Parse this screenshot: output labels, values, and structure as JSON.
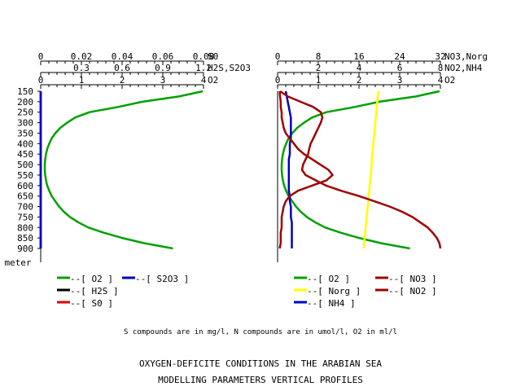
{
  "captions": {
    "note": "S compounds are in mg/l, N compounds are in umol/l, O2 in ml/l",
    "title_line1": "OXYGEN-DEFICITE CONDITIONS IN THE ARABIAN SEA",
    "title_line2": "MODELLING PARAMETERS VERTICAL PROFILES"
  },
  "depth_axis": {
    "unit_label": "meter",
    "range": [
      150,
      900
    ],
    "ticks": [
      "150",
      "200",
      "250",
      "300",
      "350",
      "400",
      "450",
      "500",
      "550",
      "600",
      "650",
      "700",
      "750",
      "800",
      "850",
      "900"
    ]
  },
  "chart_data": [
    {
      "type": "line",
      "panel": "left",
      "y_axis": "depth (m), inverted",
      "axes": [
        {
          "label": "S0",
          "range": [
            0,
            0.08
          ],
          "ticks": [
            "0",
            "0.02",
            "0.04",
            "0.06",
            "0.08"
          ]
        },
        {
          "label": "H2S,S2O3",
          "range": [
            0,
            1.2
          ],
          "ticks": [
            "0.3",
            "0.6",
            "0.9",
            "1.2"
          ]
        },
        {
          "label": "O2",
          "range": [
            0,
            4
          ],
          "ticks": [
            "0",
            "1",
            "2",
            "3",
            "4"
          ]
        }
      ],
      "depth": [
        150,
        175,
        200,
        225,
        250,
        275,
        300,
        325,
        350,
        375,
        400,
        425,
        450,
        475,
        500,
        525,
        550,
        575,
        600,
        625,
        650,
        675,
        700,
        725,
        750,
        775,
        800,
        825,
        850,
        875,
        900
      ],
      "series": [
        {
          "legend": "--[ O2 ]",
          "axis": "O2",
          "color": "#00a000",
          "values": [
            3.98,
            3.4,
            2.5,
            1.9,
            1.2,
            0.85,
            0.65,
            0.48,
            0.36,
            0.27,
            0.21,
            0.16,
            0.13,
            0.11,
            0.1,
            0.1,
            0.11,
            0.13,
            0.16,
            0.21,
            0.27,
            0.36,
            0.45,
            0.57,
            0.72,
            0.92,
            1.17,
            1.55,
            2.0,
            2.55,
            3.25
          ]
        },
        {
          "legend": "--[ H2S ]",
          "axis": "H2S,S2O3",
          "color": "#000000",
          "values": [
            0,
            0,
            0,
            0,
            0,
            0,
            0,
            0,
            0,
            0,
            0,
            0,
            0,
            0,
            0,
            0,
            0,
            0,
            0,
            0,
            0,
            0,
            0,
            0,
            0,
            0,
            0,
            0,
            0,
            0,
            0
          ]
        },
        {
          "legend": "--[ S0 ]",
          "axis": "S0",
          "color": "#e00000",
          "values": [
            0,
            0,
            0,
            0,
            0,
            0,
            0,
            0,
            0,
            0,
            0,
            0,
            0,
            0,
            0,
            0,
            0,
            0,
            0,
            0,
            0,
            0,
            0,
            0,
            0,
            0,
            0,
            0,
            0,
            0,
            0
          ]
        },
        {
          "legend": "--[ S2O3 ]",
          "axis": "H2S,S2O3",
          "color": "#0000c0",
          "values": [
            0,
            0,
            0,
            0,
            0,
            0,
            0,
            0,
            0,
            0,
            0,
            0,
            0,
            0,
            0,
            0,
            0,
            0,
            0,
            0,
            0,
            0,
            0,
            0,
            0,
            0,
            0,
            0,
            0,
            0,
            0
          ]
        }
      ]
    },
    {
      "type": "line",
      "panel": "right",
      "y_axis": "depth (m), inverted",
      "axes": [
        {
          "label": "NO3,Norg",
          "range": [
            0,
            32
          ],
          "ticks": [
            "0",
            "8",
            "16",
            "24",
            "32"
          ]
        },
        {
          "label": "NO2,NH4",
          "range": [
            0,
            8
          ],
          "ticks": [
            "2",
            "4",
            "6",
            "8"
          ]
        },
        {
          "label": "O2",
          "range": [
            0,
            4
          ],
          "ticks": [
            "0",
            "1",
            "2",
            "3",
            "4"
          ]
        }
      ],
      "depth": [
        150,
        175,
        200,
        225,
        250,
        275,
        300,
        325,
        350,
        375,
        400,
        425,
        450,
        475,
        500,
        525,
        550,
        575,
        600,
        625,
        650,
        675,
        700,
        725,
        750,
        775,
        800,
        825,
        850,
        875,
        900
      ],
      "series": [
        {
          "legend": "--[ O2 ]",
          "axis": "O2",
          "color": "#00a000",
          "values": [
            3.98,
            3.4,
            2.5,
            1.9,
            1.2,
            0.85,
            0.65,
            0.48,
            0.36,
            0.27,
            0.21,
            0.16,
            0.13,
            0.11,
            0.1,
            0.1,
            0.11,
            0.13,
            0.16,
            0.21,
            0.27,
            0.36,
            0.45,
            0.57,
            0.72,
            0.92,
            1.17,
            1.55,
            2.0,
            2.55,
            3.25
          ]
        },
        {
          "legend": "--[ Norg ]",
          "axis": "NO3,Norg",
          "color": "#ffff00",
          "values": [
            19.8,
            19.7,
            19.6,
            19.5,
            19.4,
            19.3,
            19.2,
            19.1,
            19.0,
            18.9,
            18.8,
            18.7,
            18.6,
            18.5,
            18.5,
            18.4,
            18.3,
            18.2,
            18.1,
            18.0,
            17.9,
            17.8,
            17.7,
            17.6,
            17.5,
            17.4,
            17.3,
            17.2,
            17.1,
            17.0,
            16.9
          ]
        },
        {
          "legend": "--[ NH4 ]",
          "axis": "NO2,NH4",
          "color": "#0000c0",
          "values": [
            0.4,
            0.45,
            0.5,
            0.55,
            0.6,
            0.65,
            0.65,
            0.65,
            0.65,
            0.65,
            0.6,
            0.6,
            0.6,
            0.55,
            0.55,
            0.55,
            0.55,
            0.55,
            0.55,
            0.55,
            0.6,
            0.6,
            0.65,
            0.65,
            0.65,
            0.7,
            0.7,
            0.7,
            0.7,
            0.7,
            0.7
          ]
        },
        {
          "legend": "--[ NO3 ]",
          "axis": "NO3,Norg",
          "color": "#a00000",
          "values": [
            0.5,
            2.0,
            4.5,
            7.0,
            8.5,
            8.8,
            8.5,
            8.0,
            7.5,
            7.0,
            6.5,
            6.2,
            6.0,
            5.5,
            5.0,
            4.8,
            5.5,
            7.5,
            9.5,
            12.5,
            16.0,
            19.0,
            22.0,
            24.5,
            26.5,
            28.0,
            29.5,
            30.5,
            31.3,
            31.8,
            32.0
          ]
        },
        {
          "legend": "--[ NO2 ]",
          "axis": "NO2,NH4",
          "color": "#a00000",
          "values": [
            0.1,
            0.12,
            0.15,
            0.15,
            0.2,
            0.2,
            0.25,
            0.3,
            0.4,
            0.6,
            0.8,
            1.0,
            1.3,
            1.7,
            2.1,
            2.5,
            2.7,
            2.4,
            1.7,
            1.0,
            0.6,
            0.4,
            0.3,
            0.25,
            0.2,
            0.2,
            0.2,
            0.15,
            0.15,
            0.15,
            0.1
          ]
        }
      ]
    }
  ]
}
